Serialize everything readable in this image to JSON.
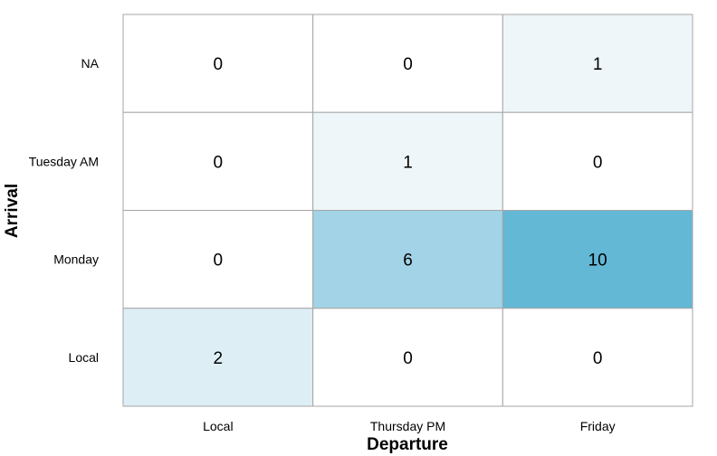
{
  "chart_data": {
    "type": "heatmap",
    "title": "",
    "xlabel": "Departure",
    "ylabel": "Arrival",
    "x_categories": [
      "Local",
      "Thursday PM",
      "Friday"
    ],
    "y_categories": [
      "NA",
      "Tuesday AM",
      "Monday",
      "Local"
    ],
    "values": [
      [
        0,
        0,
        1
      ],
      [
        0,
        1,
        0
      ],
      [
        0,
        6,
        10
      ],
      [
        2,
        0,
        0
      ]
    ],
    "color_scale": {
      "0": "#ffffff",
      "1": "#eef6f9",
      "2": "#ddeff5",
      "6": "#a3d3e6",
      "10": "#62b8d5"
    },
    "grid_color": "#a6a6a6",
    "legend": "none"
  }
}
